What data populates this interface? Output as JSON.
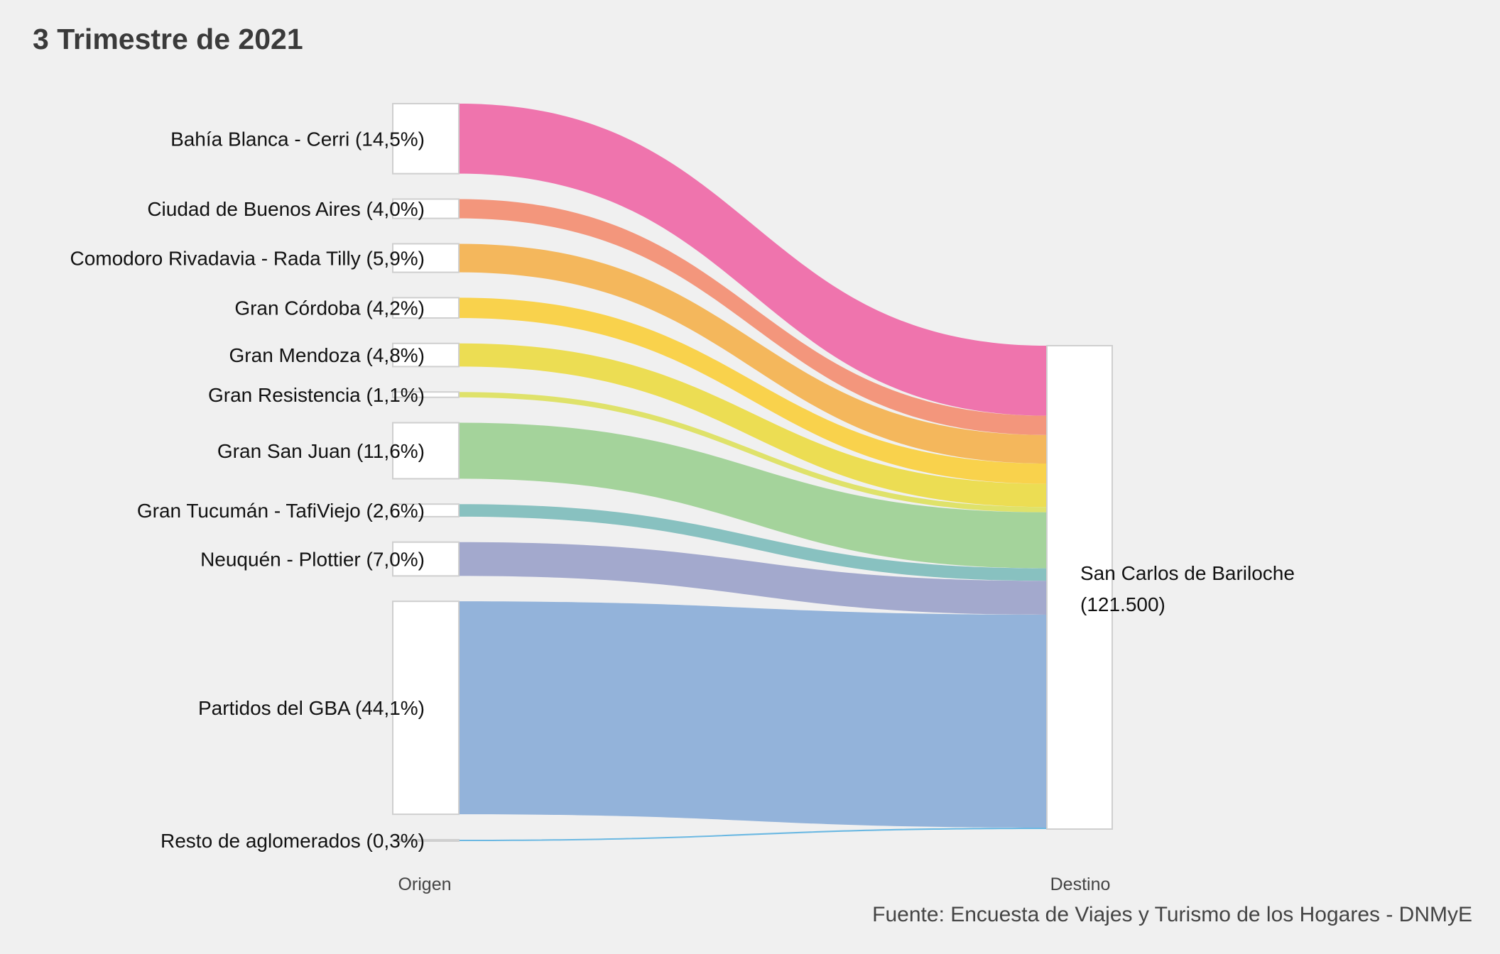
{
  "chart_data": {
    "type": "sankey",
    "title": "3 Trimestre de 2021",
    "axis_labels": [
      "Origen",
      "Destino"
    ],
    "caption": "Fuente: Encuesta de Viajes y Turismo de los Hogares - DNMyE",
    "destination": {
      "label_line1": "San Carlos de Bariloche",
      "label_line2": "(121.500)",
      "total": 121500
    },
    "origins": [
      {
        "label": "Bahía Blanca - Cerri (14,5%)",
        "share": 14.5,
        "color": "#ef74ad"
      },
      {
        "label": "Ciudad de Buenos Aires (4,0%)",
        "share": 4.0,
        "color": "#f3967c"
      },
      {
        "label": "Comodoro Rivadavia - Rada Tilly (5,9%)",
        "share": 5.9,
        "color": "#f4b75c"
      },
      {
        "label": "Gran Córdoba (4,2%)",
        "share": 4.2,
        "color": "#f9d24c"
      },
      {
        "label": "Gran Mendoza (4,8%)",
        "share": 4.8,
        "color": "#ecdd53"
      },
      {
        "label": "Gran Resistencia (1,1%)",
        "share": 1.1,
        "color": "#dfe26a"
      },
      {
        "label": "Gran San Juan (11,6%)",
        "share": 11.6,
        "color": "#a4d39b"
      },
      {
        "label": "Gran Tucumán - TafiViejo (2,6%)",
        "share": 2.6,
        "color": "#88c1c0"
      },
      {
        "label": "Neuquén - Plottier (7,0%)",
        "share": 7.0,
        "color": "#a3a9cd"
      },
      {
        "label": "Partidos del GBA (44,1%)",
        "share": 44.1,
        "color": "#93b3da"
      },
      {
        "label": "Resto de aglomerados (0,3%)",
        "share": 0.3,
        "color": "#6bb8e2"
      }
    ]
  }
}
